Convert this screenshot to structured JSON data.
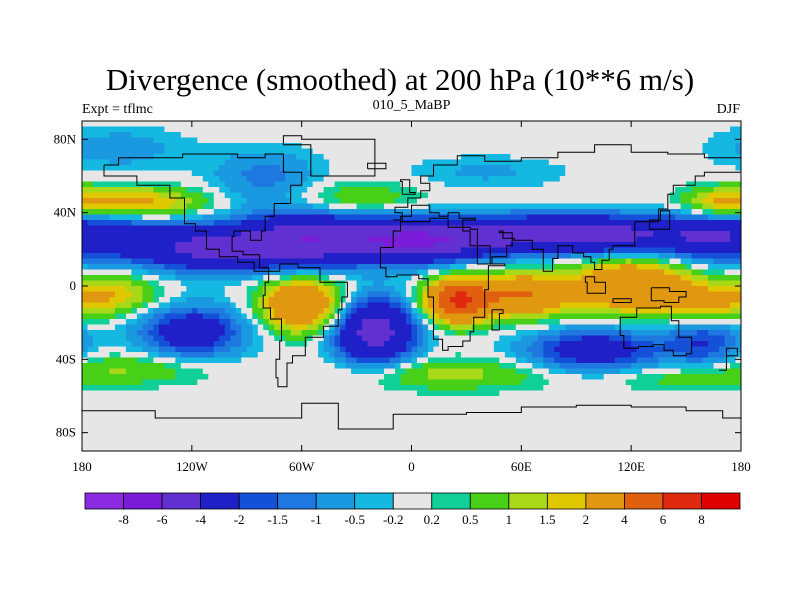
{
  "chart_data": {
    "type": "heatmap",
    "title": "Divergence (smoothed) at 200 hPa (10**6 m/s)",
    "subtitle_left": "Expt = tflmc",
    "subtitle_center": "010_5_MaBP",
    "subtitle_right": "DJF",
    "xlabel": "",
    "ylabel": "",
    "x_range": [
      -180,
      180
    ],
    "y_range": [
      -90,
      90
    ],
    "x_ticks": [
      {
        "value": -180,
        "label": "180"
      },
      {
        "value": -120,
        "label": "120W"
      },
      {
        "value": -60,
        "label": "60W"
      },
      {
        "value": 0,
        "label": "0"
      },
      {
        "value": 60,
        "label": "60E"
      },
      {
        "value": 120,
        "label": "120E"
      },
      {
        "value": 180,
        "label": "180"
      }
    ],
    "y_ticks": [
      {
        "value": 80,
        "label": "80N"
      },
      {
        "value": 40,
        "label": "40N"
      },
      {
        "value": 0,
        "label": "0"
      },
      {
        "value": -40,
        "label": "40S"
      },
      {
        "value": -80,
        "label": "80S"
      }
    ],
    "colorbar": {
      "colors": [
        "#8a2be2",
        "#7a1cd8",
        "#6130d0",
        "#2020c8",
        "#1450d8",
        "#1e78e0",
        "#1a98e0",
        "#14b8e0",
        "#e6e6e6",
        "#10d098",
        "#48d018",
        "#a8d818",
        "#e0c800",
        "#e09810",
        "#e06010",
        "#e02a10",
        "#e00000"
      ],
      "labels": [
        "-8",
        "-6",
        "-4",
        "-2",
        "-1.5",
        "-1",
        "-0.5",
        "-0.2",
        "0.2",
        "0.5",
        "1",
        "1.5",
        "2",
        "4",
        "6",
        "8"
      ]
    },
    "field_centers": [
      {
        "lon": -165,
        "lat": 27,
        "value": -2.5,
        "sx": 30,
        "sy": 10
      },
      {
        "lon": -110,
        "lat": 20,
        "value": -4,
        "sx": 25,
        "sy": 8
      },
      {
        "lon": -60,
        "lat": 25,
        "value": -5,
        "sx": 25,
        "sy": 10
      },
      {
        "lon": 0,
        "lat": 25,
        "value": -6,
        "sx": 28,
        "sy": 8
      },
      {
        "lon": 60,
        "lat": 28,
        "value": -4,
        "sx": 28,
        "sy": 7
      },
      {
        "lon": 110,
        "lat": 28,
        "value": -4,
        "sx": 25,
        "sy": 7
      },
      {
        "lon": 160,
        "lat": 27,
        "value": -2.5,
        "sx": 20,
        "sy": 8
      },
      {
        "lon": -150,
        "lat": 45,
        "value": 2.5,
        "sx": 25,
        "sy": 6
      },
      {
        "lon": -30,
        "lat": 47,
        "value": 1,
        "sx": 25,
        "sy": 7
      },
      {
        "lon": 170,
        "lat": 45,
        "value": 2,
        "sx": 15,
        "sy": 6
      },
      {
        "lon": -160,
        "lat": 75,
        "value": -0.8,
        "sx": 25,
        "sy": 8
      },
      {
        "lon": -80,
        "lat": 60,
        "value": -1.2,
        "sx": 20,
        "sy": 10
      },
      {
        "lon": 40,
        "lat": 62,
        "value": -0.6,
        "sx": 30,
        "sy": 6
      },
      {
        "lon": -165,
        "lat": -5,
        "value": 2,
        "sx": 18,
        "sy": 8
      },
      {
        "lon": -60,
        "lat": -10,
        "value": 4,
        "sx": 15,
        "sy": 10
      },
      {
        "lon": 25,
        "lat": -8,
        "value": 6,
        "sx": 12,
        "sy": 8
      },
      {
        "lon": 60,
        "lat": -5,
        "value": 4,
        "sx": 18,
        "sy": 8
      },
      {
        "lon": 120,
        "lat": 0,
        "value": 4,
        "sx": 22,
        "sy": 10
      },
      {
        "lon": 160,
        "lat": -10,
        "value": 2,
        "sx": 15,
        "sy": 8
      },
      {
        "lon": -20,
        "lat": -25,
        "value": -5,
        "sx": 15,
        "sy": 12
      },
      {
        "lon": -120,
        "lat": -25,
        "value": -3,
        "sx": 20,
        "sy": 10
      },
      {
        "lon": 100,
        "lat": -35,
        "value": -3,
        "sx": 25,
        "sy": 8
      },
      {
        "lon": 160,
        "lat": -30,
        "value": -2,
        "sx": 15,
        "sy": 10
      },
      {
        "lon": -150,
        "lat": -45,
        "value": 1,
        "sx": 30,
        "sy": 6
      },
      {
        "lon": 20,
        "lat": -48,
        "value": 1.2,
        "sx": 40,
        "sy": 6
      },
      {
        "lon": 150,
        "lat": -50,
        "value": 0.8,
        "sx": 30,
        "sy": 5
      }
    ]
  }
}
